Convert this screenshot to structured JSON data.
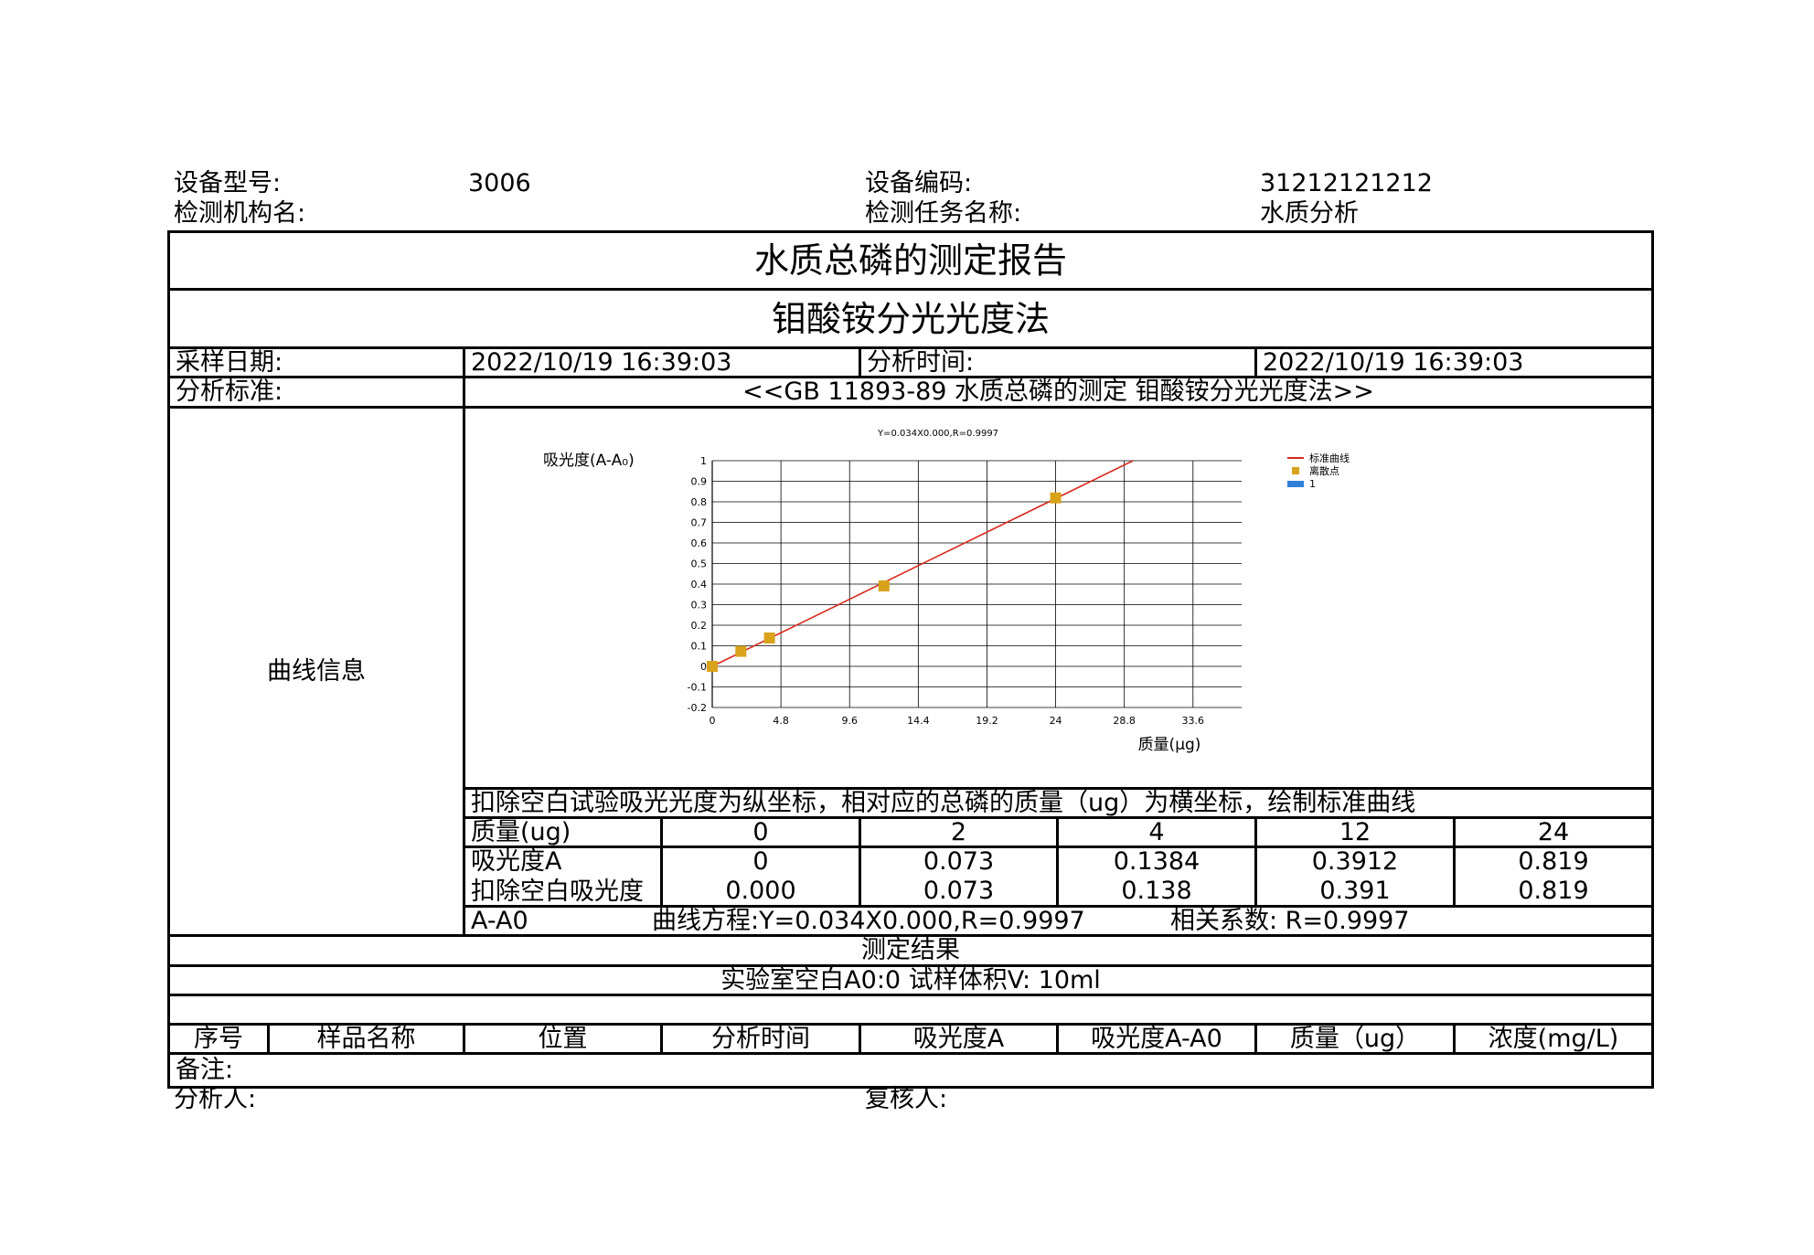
{
  "header": {
    "device_model_label": "设备型号:",
    "device_model_value": "3006",
    "device_code_label": "设备编码:",
    "device_code_value": "31212121212",
    "institution_label": "检测机构名:",
    "institution_value": "",
    "task_label": "检测任务名称:",
    "task_value": "水质分析"
  },
  "report": {
    "title": "水质总磷的测定报告",
    "method": "钼酸铵分光光度法",
    "sampling_date_label": "采样日期:",
    "sampling_date_value": "2022/10/19 16:39:03",
    "analysis_time_label": "分析时间:",
    "analysis_time_value": "2022/10/19 16:39:03",
    "standard_label": "分析标准:",
    "standard_value": "<<GB 11893-89 水质总磷的测定 钼酸铵分光光度法>>",
    "curve_info_label": "曲线信息",
    "curve_note": "扣除空白试验吸光光度为纵坐标，相对应的总磷的质量（ug）为横坐标，绘制标准曲线",
    "table": {
      "row_labels": [
        "质量(ug)",
        "吸光度A",
        "扣除空白吸光度A-A0"
      ],
      "mass": [
        "0",
        "2",
        "4",
        "12",
        "24"
      ],
      "absorbance": [
        "0",
        "0.073",
        "0.1384",
        "0.3912",
        "0.819"
      ],
      "corrected": [
        "0.000",
        "0.073",
        "0.138",
        "0.391",
        "0.819"
      ]
    },
    "equation_text": "曲线方程:Y=0.034X0.000,R=0.9997",
    "correlation_text": "相关系数:   R=0.9997",
    "result_title": "测定结果",
    "lab_blank_text": "实验室空白A0:0   试样体积V:  10ml",
    "result_headers": [
      "序号",
      "样品名称",
      "位置",
      "分析时间",
      "吸光度A",
      "吸光度A-A0",
      "质量（ug）",
      "浓度(mg/L)"
    ],
    "remarks_label": "备注:"
  },
  "footer": {
    "analyst_label": "分析人:",
    "reviewer_label": "复核人:"
  },
  "chart_data": {
    "type": "scatter",
    "title": "Y=0.034X0.000,R=0.9997",
    "xlabel": "质量(μg)",
    "ylabel": "吸光度(A-A₀)",
    "xlim": [
      0,
      37
    ],
    "ylim": [
      -0.2,
      1.0
    ],
    "x_ticks": [
      "0",
      "4.8",
      "9.6",
      "14.4",
      "19.2",
      "24",
      "28.8",
      "33.6"
    ],
    "y_ticks": [
      "1",
      "0.9",
      "0.8",
      "0.7",
      "0.6",
      "0.5",
      "0.4",
      "0.3",
      "0.2",
      "0.1",
      "0",
      "-0.1",
      "-0.2"
    ],
    "grid": true,
    "legend": [
      "标准曲线",
      "离散点",
      "1"
    ],
    "legend_position": "right",
    "series": [
      {
        "name": "离散点",
        "color": "#d9a21b",
        "x": [
          0,
          2,
          4,
          12,
          24
        ],
        "y": [
          0,
          0.073,
          0.138,
          0.391,
          0.819
        ]
      },
      {
        "name": "标准曲线",
        "color": "#d62a1e",
        "slope": 0.034,
        "intercept": 0.0
      }
    ],
    "legend_bar_color": "#2f7fd6"
  }
}
